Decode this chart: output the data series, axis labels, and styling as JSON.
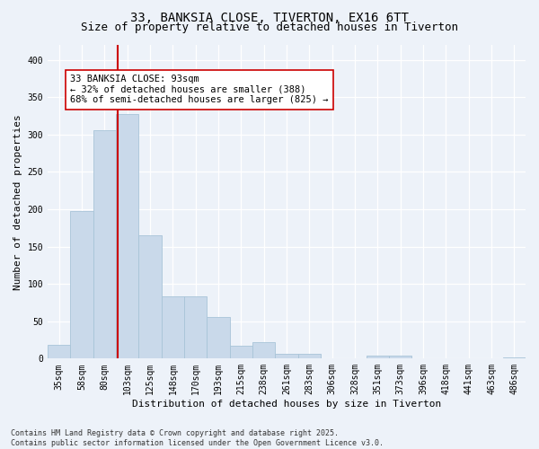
{
  "title_line1": "33, BANKSIA CLOSE, TIVERTON, EX16 6TT",
  "title_line2": "Size of property relative to detached houses in Tiverton",
  "xlabel": "Distribution of detached houses by size in Tiverton",
  "ylabel": "Number of detached properties",
  "bar_color": "#c9d9ea",
  "bar_edgecolor": "#a8c4d8",
  "categories": [
    "35sqm",
    "58sqm",
    "80sqm",
    "103sqm",
    "125sqm",
    "148sqm",
    "170sqm",
    "193sqm",
    "215sqm",
    "238sqm",
    "261sqm",
    "283sqm",
    "306sqm",
    "328sqm",
    "351sqm",
    "373sqm",
    "396sqm",
    "418sqm",
    "441sqm",
    "463sqm",
    "486sqm"
  ],
  "values": [
    19,
    197,
    306,
    328,
    165,
    83,
    83,
    56,
    17,
    22,
    6,
    6,
    0,
    0,
    4,
    4,
    0,
    0,
    0,
    0,
    2
  ],
  "vline_x": 2.58,
  "vline_color": "#cc0000",
  "annotation_text": "33 BANKSIA CLOSE: 93sqm\n← 32% of detached houses are smaller (388)\n68% of semi-detached houses are larger (825) →",
  "annotation_box_color": "#ffffff",
  "annotation_box_edgecolor": "#cc0000",
  "ylim": [
    0,
    420
  ],
  "yticks": [
    0,
    50,
    100,
    150,
    200,
    250,
    300,
    350,
    400
  ],
  "background_color": "#edf2f9",
  "grid_color": "#ffffff",
  "footnote": "Contains HM Land Registry data © Crown copyright and database right 2025.\nContains public sector information licensed under the Open Government Licence v3.0.",
  "title_fontsize": 10,
  "subtitle_fontsize": 9,
  "axis_label_fontsize": 8,
  "tick_fontsize": 7,
  "annotation_fontsize": 7.5,
  "footnote_fontsize": 6
}
